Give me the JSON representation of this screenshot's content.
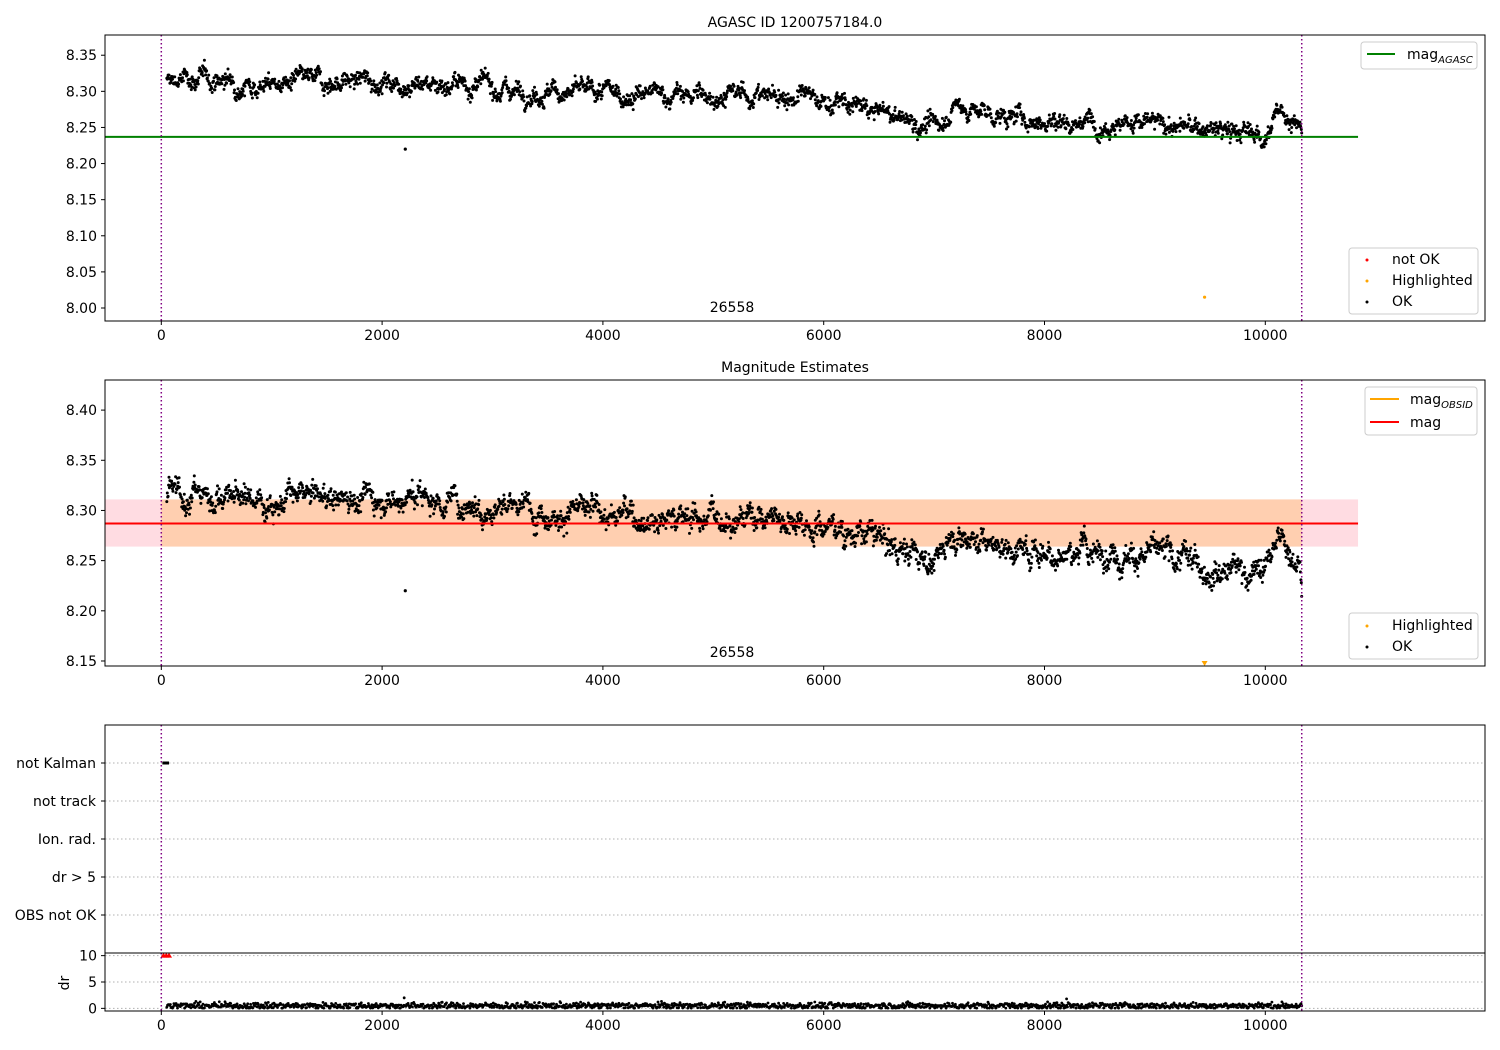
{
  "chart_data": [
    {
      "type": "scatter",
      "title": "AGASC ID 1200757184.0",
      "xlim": [
        -510,
        11990
      ],
      "ylim": [
        7.982,
        8.378
      ],
      "xticks": [
        0,
        2000,
        4000,
        6000,
        8000,
        10000
      ],
      "yticks": [
        8.0,
        8.05,
        8.1,
        8.15,
        8.2,
        8.25,
        8.3,
        8.35
      ],
      "grid": false,
      "hlines": [
        {
          "name": "mag_AGASC",
          "y": 8.237,
          "x": [
            -510,
            10840
          ],
          "color": "#008000"
        }
      ],
      "vlines": [
        {
          "x": 0,
          "color": "#800080",
          "style": "dotted"
        },
        {
          "x": 10330,
          "color": "#800080",
          "style": "dotted"
        }
      ],
      "annotations": [
        {
          "text": "26558",
          "x": 5170,
          "y": 8.0
        }
      ],
      "series": [
        {
          "name": "OK",
          "color": "#000000",
          "trend": {
            "x": [
              50,
              300,
              1000,
              1800,
              2500,
              3500,
              4500,
              5500,
              5800,
              6400,
              7000,
              7200,
              7600,
              8000,
              8800,
              9500,
              10000,
              10150,
              10330
            ],
            "y": [
              8.312,
              8.318,
              8.31,
              8.315,
              8.312,
              8.3,
              8.294,
              8.295,
              8.292,
              8.275,
              8.25,
              8.28,
              8.265,
              8.26,
              8.258,
              8.246,
              8.24,
              8.275,
              8.248
            ]
          },
          "spread": 0.009,
          "outliers": [
            {
              "x": 2210,
              "y": 8.22
            }
          ]
        },
        {
          "name": "Highlighted",
          "color": "#ffa500",
          "points": [
            {
              "x": 9450,
              "y": 8.015
            }
          ]
        },
        {
          "name": "not OK",
          "color": "#ff0000",
          "points": []
        }
      ],
      "legend_lines": [
        {
          "name": "mag",
          "sub": "AGASC",
          "color": "#008000"
        }
      ],
      "legend_markers": [
        {
          "name": "not OK",
          "color": "#ff0000"
        },
        {
          "name": "Highlighted",
          "color": "#ffa500"
        },
        {
          "name": "OK",
          "color": "#000000"
        }
      ]
    },
    {
      "type": "scatter",
      "title": "Magnitude Estimates",
      "xlim": [
        -510,
        11990
      ],
      "ylim": [
        8.145,
        8.43
      ],
      "xticks": [
        0,
        2000,
        4000,
        6000,
        8000,
        10000
      ],
      "yticks": [
        8.15,
        8.2,
        8.25,
        8.3,
        8.35,
        8.4
      ],
      "grid": false,
      "hlines": [
        {
          "name": "mag",
          "y": 8.287,
          "x": [
            -510,
            10840
          ],
          "color": "#ff0000"
        }
      ],
      "bands": [
        {
          "y": [
            8.264,
            8.311
          ],
          "x": [
            -510,
            10840
          ],
          "color": "#ffc0cb",
          "opacity": 0.55
        },
        {
          "y": [
            8.264,
            8.311
          ],
          "x": [
            0,
            10330
          ],
          "color": "#ffa500",
          "opacity": 0.22
        }
      ],
      "vlines": [
        {
          "x": 0,
          "color": "#800080",
          "style": "dotted"
        },
        {
          "x": 10330,
          "color": "#800080",
          "style": "dotted"
        }
      ],
      "annotations": [
        {
          "text": "26558",
          "x": 5170,
          "y": 8.153
        }
      ],
      "series": [
        {
          "name": "OK",
          "color": "#000000",
          "trend": {
            "x": [
              50,
              300,
              1000,
              1800,
              2500,
              3500,
              4500,
              5500,
              5800,
              6400,
              7000,
              7200,
              7600,
              8000,
              8800,
              9500,
              10000,
              10150,
              10330
            ],
            "y": [
              8.312,
              8.318,
              8.31,
              8.315,
              8.312,
              8.3,
              8.294,
              8.295,
              8.292,
              8.275,
              8.25,
              8.28,
              8.265,
              8.26,
              8.258,
              8.246,
              8.24,
              8.275,
              8.248
            ]
          },
          "spread": 0.009,
          "outliers": [
            {
              "x": 2210,
              "y": 8.22
            }
          ]
        },
        {
          "name": "Highlighted",
          "color": "#ffa500",
          "points": [
            {
              "x": 9450,
              "y": 8.147
            }
          ]
        }
      ],
      "legend_lines": [
        {
          "name": "mag",
          "sub": "OBSID",
          "color": "#ffa500"
        },
        {
          "name": "mag",
          "sub": "",
          "color": "#ff0000"
        }
      ],
      "legend_markers": [
        {
          "name": "Highlighted",
          "color": "#ffa500"
        },
        {
          "name": "OK",
          "color": "#000000"
        }
      ]
    },
    {
      "type": "scatter",
      "title": "",
      "xlim": [
        -510,
        11990
      ],
      "categories": [
        "not Kalman",
        "not track",
        "Ion. rad.",
        "dr > 5",
        "OBS not OK"
      ],
      "flags": [
        {
          "category": "not Kalman",
          "x": [
            10,
            70
          ],
          "color": "#000000"
        }
      ],
      "vlines": [
        {
          "x": 0,
          "color": "#800080",
          "style": "dotted"
        },
        {
          "x": 10330,
          "color": "#800080",
          "style": "dotted"
        }
      ]
    },
    {
      "type": "scatter",
      "title": "",
      "xlabel": "",
      "ylabel": "dr",
      "xlim": [
        -510,
        11990
      ],
      "ylim": [
        -0.5,
        10.5
      ],
      "xticks": [
        0,
        2000,
        4000,
        6000,
        8000,
        10000
      ],
      "yticks": [
        0,
        5,
        10
      ],
      "grid": true,
      "vlines": [
        {
          "x": 0,
          "color": "#800080",
          "style": "dotted"
        },
        {
          "x": 10330,
          "color": "#800080",
          "style": "dotted"
        }
      ],
      "series": [
        {
          "name": "dr",
          "color": "#000000",
          "trend": {
            "x": [
              50,
              10330
            ],
            "y": [
              0.5,
              0.5
            ]
          },
          "spread": 0.3,
          "outliers": [
            {
              "x": 2200,
              "y": 2.0
            },
            {
              "x": 8200,
              "y": 1.8
            }
          ]
        },
        {
          "name": "dr not OK",
          "color": "#ff0000",
          "points": [
            {
              "x": 20,
              "y": 10
            },
            {
              "x": 45,
              "y": 10
            },
            {
              "x": 70,
              "y": 10
            }
          ]
        }
      ]
    }
  ]
}
